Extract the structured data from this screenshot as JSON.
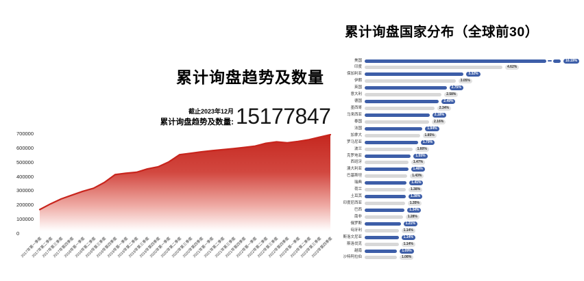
{
  "page": {
    "background": "#ffffff"
  },
  "colors": {
    "bar_primary": "#3d5ea8",
    "bar_secondary": "#d8d8d8",
    "area_line": "#c8251d",
    "area_fill_top": "#c5271f",
    "area_fill_bottom": "#ffffff"
  },
  "chart_data": [
    {
      "type": "area",
      "title": "累计询盘趋势及数量",
      "annotation": {
        "as_of": "截止2023年12月",
        "label": "累计询盘趋势及数量:",
        "value": "15177847"
      },
      "x": [
        "2017年第一季度",
        "2017年第二季度",
        "2017年第三季度",
        "2017年第四季度",
        "2018年第一季度",
        "2018年第二季度",
        "2018年第三季度",
        "2018年第四季度",
        "2019年第一季度",
        "2019年第二季度",
        "2019年第三季度",
        "2019年第四季度",
        "2020年第一季度",
        "2020年第二季度",
        "2020年第三季度",
        "2020年第四季度",
        "2021年第一季度",
        "2021年第二季度",
        "2021年第三季度",
        "2021年第四季度",
        "2022年第一季度",
        "2022年第二季度",
        "2022年第三季度",
        "2022年第四季度",
        "2023年第一季度",
        "2023年第二季度",
        "2023年第三季度",
        "2023年第四季度"
      ],
      "values": [
        170000,
        210000,
        245000,
        272000,
        298000,
        320000,
        360000,
        415000,
        425000,
        432000,
        455000,
        470000,
        505000,
        555000,
        565000,
        575000,
        583000,
        590000,
        598000,
        606000,
        615000,
        635000,
        645000,
        638000,
        648000,
        660000,
        678000,
        695000
      ],
      "ylim": [
        0,
        700000
      ],
      "yticks": [
        0,
        100000,
        200000,
        300000,
        400000,
        500000,
        600000,
        700000
      ],
      "grid": false,
      "legend": "none"
    },
    {
      "type": "bar",
      "orientation": "horizontal",
      "title": "累计询盘国家分布（全球前30）",
      "unit": "%",
      "first_bar_truncated": true,
      "categories": [
        "美国",
        "印度",
        "保加利亚",
        "伊朗",
        "英国",
        "意大利",
        "德国",
        "墨西哥",
        "马来西亚",
        "泰国",
        "法国",
        "加拿大",
        "罗马尼亚",
        "波兰",
        "克罗地亚",
        "西班牙",
        "澳大利亚",
        "巴基斯坦",
        "瑞典",
        "荷兰",
        "土耳其",
        "印度尼西亚",
        "巴西",
        "南非",
        "俄罗斯",
        "匈牙利",
        "斯洛文尼亚",
        "斯洛伐克",
        "越南",
        "沙特阿拉伯"
      ],
      "values": [
        10.19,
        4.62,
        3.32,
        3.05,
        2.75,
        2.58,
        2.49,
        2.34,
        2.18,
        2.16,
        1.94,
        1.85,
        1.79,
        1.6,
        1.55,
        1.47,
        1.46,
        1.43,
        1.41,
        1.38,
        1.38,
        1.35,
        1.34,
        1.28,
        1.21,
        1.14,
        1.14,
        1.14,
        1.09,
        1.08
      ]
    }
  ]
}
